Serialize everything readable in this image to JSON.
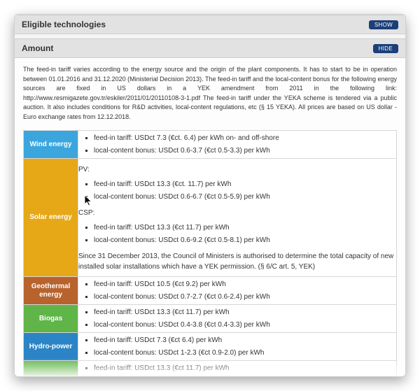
{
  "sections": {
    "eligible": {
      "title": "Eligible technologies",
      "button": "SHOW"
    },
    "amount": {
      "title": "Amount",
      "button": "HIDE"
    }
  },
  "intro": "The feed-in tariff varies according to the energy source and the origin of the plant components. It has to start to be in operation between 01.01.2016 and 31.12.2020 (Ministerial Decision 2013). The feed-in tariff and the local-content bonus for the following energy sources are fixed in US dollars in a YEK amendment from 2011 in the following link: http://www.resmigazete.gov.tr/eskiler/2011/01/20110108-3-1.pdf  The feed-in tariff under the YEKA scheme is tendered via a public auction. It also includes conditions for R&D activities, local-content regulations, etc (§ 15 YEKA). All prices are based on US dollar - Euro exchange rates from 12.12.2018.",
  "rows": [
    {
      "key": "wind",
      "label": "Wind energy",
      "color": "#3aa6dd",
      "bullets": [
        "feed-in tariff: USDct 7.3 (€ct. 6.4) per kWh on- and off-shore",
        "local-content bonus: USDct 0.6-3.7 (€ct 0.5-3.3) per kWh"
      ]
    },
    {
      "key": "solar",
      "label": "Solar energy",
      "color": "#e6a817",
      "pv_label": "PV:",
      "pv_bullets": [
        "feed-in tariff: USDct 13.3 (€ct. 11.7) per kWh",
        "local-content bonus: USDct 0.6-6.7 (€ct 0.5-5.9) per kWh"
      ],
      "csp_label": "CSP:",
      "csp_bullets": [
        "feed-in tariff: USDct 13.3 (€ct 11.7) per kWh",
        "local-content bonus: USDct 0.6-9.2 (€ct 0.5-8.1) per kWh"
      ],
      "note": "Since 31 December 2013, the Council of Ministers is authorised to determine the total capacity of new installed solar installations which have a YEK permission. (§ 6/C art. 5, YEK)"
    },
    {
      "key": "geothermal",
      "label": "Geothermal energy",
      "color": "#b8622e",
      "bullets": [
        "feed-in tariff: USDct 10.5 (€ct 9.2) per kWh",
        "local-content bonus: USDct 0.7-2.7 (€ct 0.6-2.4) per kWh"
      ]
    },
    {
      "key": "biogas",
      "label": "Biogas",
      "color": "#5fb547",
      "bullets": [
        "feed-in tariff: USDct 13.3 (€ct 11.7) per kWh",
        "local-content bonus: USDct 0.4-3.8 (€ct 0.4-3.3) per kWh"
      ]
    },
    {
      "key": "hydro",
      "label": "Hydro-power",
      "color": "#2b84c6",
      "bullets": [
        "feed-in tariff: USDct 7.3 (€ct 6.4) per kWh",
        "local-content bonus: USDct 1-2.3 (€ct 0.9-2.0) per kWh"
      ]
    },
    {
      "key": "biomass",
      "label": "",
      "color": "#5fb547",
      "bullets": [
        "feed-in tariff: USDct 13.3 (€ct 11.7) per kWh"
      ]
    }
  ]
}
